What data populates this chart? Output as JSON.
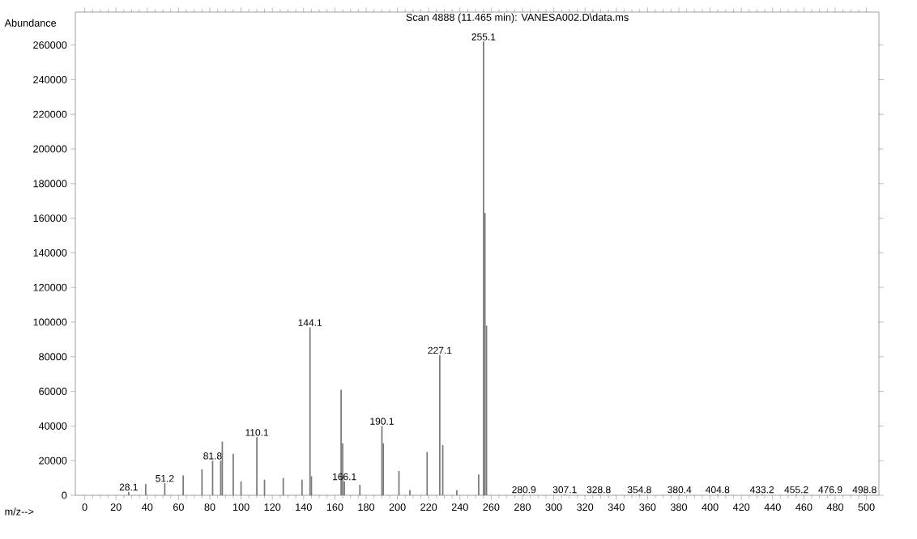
{
  "chart_data": {
    "type": "bar",
    "title": "Scan 4888 (11.465 min): VANESA002.D\\data.ms",
    "xlabel": "m/z-->",
    "ylabel": "Abundance",
    "x": [
      28.1,
      39,
      51.2,
      63,
      75,
      81.8,
      87,
      88,
      95,
      100,
      110.1,
      115,
      127,
      139,
      144.1,
      145,
      164,
      165,
      166.1,
      176,
      190.1,
      191,
      201,
      208,
      219,
      227.1,
      229,
      238,
      252,
      255.1,
      256,
      257,
      280.9,
      307.1,
      328.8,
      354.8,
      380.4,
      404.8,
      433.2,
      455.2,
      476.9,
      498.8
    ],
    "values": [
      2000,
      6500,
      7000,
      11500,
      15000,
      20000,
      20000,
      31000,
      24000,
      8000,
      33500,
      9000,
      10000,
      9000,
      97000,
      11000,
      61000,
      30000,
      8000,
      6000,
      40000,
      30000,
      14000,
      3000,
      25000,
      81000,
      29000,
      3000,
      12000,
      262000,
      163000,
      98000,
      500,
      500,
      500,
      500,
      500,
      500,
      500,
      500,
      500,
      500
    ],
    "color": "#7a7a7a",
    "xlim": [
      -6,
      508
    ],
    "ylim": [
      0,
      279000
    ],
    "xticks": [
      0,
      20,
      40,
      60,
      80,
      100,
      120,
      140,
      160,
      180,
      200,
      220,
      240,
      260,
      280,
      300,
      320,
      340,
      360,
      380,
      400,
      420,
      440,
      460,
      480,
      500
    ],
    "yticks": [
      0,
      20000,
      40000,
      60000,
      80000,
      100000,
      120000,
      140000,
      160000,
      180000,
      200000,
      220000,
      240000,
      260000
    ],
    "annotations": [
      {
        "text": "28.1",
        "x": 28.1,
        "y": 2000
      },
      {
        "text": "51.2",
        "x": 51.2,
        "y": 7000
      },
      {
        "text": "81.8",
        "x": 81.8,
        "y": 20000
      },
      {
        "text": "110.1",
        "x": 110.1,
        "y": 33500
      },
      {
        "text": "144.1",
        "x": 144.1,
        "y": 97000
      },
      {
        "text": "166.1",
        "x": 166.1,
        "y": 8000
      },
      {
        "text": "190.1",
        "x": 190.1,
        "y": 40000
      },
      {
        "text": "227.1",
        "x": 227.1,
        "y": 81000
      },
      {
        "text": "255.1",
        "x": 255.1,
        "y": 262000
      },
      {
        "text": "280.9",
        "x": 280.9,
        "y": 500
      },
      {
        "text": "307.1",
        "x": 307.1,
        "y": 500
      },
      {
        "text": "328.8",
        "x": 328.8,
        "y": 500
      },
      {
        "text": "354.8",
        "x": 354.8,
        "y": 500
      },
      {
        "text": "380.4",
        "x": 380.4,
        "y": 500
      },
      {
        "text": "404.8",
        "x": 404.8,
        "y": 500
      },
      {
        "text": "433.2",
        "x": 433.2,
        "y": 500
      },
      {
        "text": "455.2",
        "x": 455.2,
        "y": 500
      },
      {
        "text": "476.9",
        "x": 476.9,
        "y": 500
      },
      {
        "text": "498.8",
        "x": 498.8,
        "y": 500
      }
    ]
  }
}
